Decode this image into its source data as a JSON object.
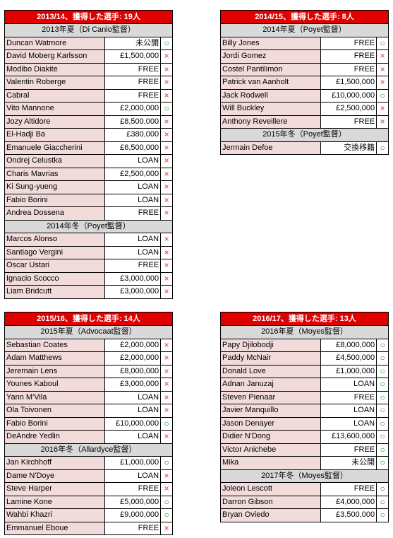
{
  "tables": [
    {
      "title": "2013/14、獲得した選手: 19人",
      "groups": [
        {
          "label": "2013年夏（Di Canio監督）",
          "rows": [
            {
              "name": "Duncan Watmore",
              "fee": "未公開",
              "mark": "ok"
            },
            {
              "name": "David Moberg Karlsson",
              "fee": "£1,500,000",
              "mark": "ng"
            },
            {
              "name": "Modibo Diakite",
              "fee": "FREE",
              "mark": "ng"
            },
            {
              "name": "Valentin Roberge",
              "fee": "FREE",
              "mark": "ng"
            },
            {
              "name": "Cabral",
              "fee": "FREE",
              "mark": "ng"
            },
            {
              "name": "Vito Mannone",
              "fee": "£2,000,000",
              "mark": "ok"
            },
            {
              "name": "Jozy Altidore",
              "fee": "£8,500,000",
              "mark": "ng"
            },
            {
              "name": "El-Hadji Ba",
              "fee": "£380,000",
              "mark": "ng"
            },
            {
              "name": "Emanuele Giaccherini",
              "fee": "£6,500,000",
              "mark": "ng"
            },
            {
              "name": "Ondrej Celustka",
              "fee": "LOAN",
              "mark": "ng"
            },
            {
              "name": "Charis Mavrias",
              "fee": "£2,500,000",
              "mark": "ng"
            },
            {
              "name": "Ki Sung-yueng",
              "fee": "LOAN",
              "mark": "ng"
            },
            {
              "name": "Fabio Borini",
              "fee": "LOAN",
              "mark": "ng"
            },
            {
              "name": "Andrea Dossena",
              "fee": "FREE",
              "mark": "ng"
            }
          ]
        },
        {
          "label": "2014年冬（Poyet監督）",
          "rows": [
            {
              "name": "Marcos Alonso",
              "fee": "LOAN",
              "mark": "ng"
            },
            {
              "name": "Santiago Vergini",
              "fee": "LOAN",
              "mark": "ng"
            },
            {
              "name": "Oscar Ustari",
              "fee": "FREE",
              "mark": "ng"
            },
            {
              "name": "Ignacio Scocco",
              "fee": "£3,000,000",
              "mark": "ng"
            },
            {
              "name": "Liam Bridcutt",
              "fee": "£3,000,000",
              "mark": "ng"
            }
          ]
        }
      ]
    },
    {
      "title": "2014/15、獲得した選手: 8人",
      "groups": [
        {
          "label": "2014年夏（Poyet監督）",
          "rows": [
            {
              "name": "Billy Jones",
              "fee": "FREE",
              "mark": "ok"
            },
            {
              "name": "Jordi Gomez",
              "fee": "FREE",
              "mark": "ng"
            },
            {
              "name": "Costel Pantilimon",
              "fee": "FREE",
              "mark": "ng"
            },
            {
              "name": "Patrick van Aanholt",
              "fee": "£1,500,000",
              "mark": "ng"
            },
            {
              "name": "Jack Rodwell",
              "fee": "£10,000,000",
              "mark": "ok"
            },
            {
              "name": "Will Buckley",
              "fee": "£2,500,000",
              "mark": "ng"
            },
            {
              "name": "Anthony Reveillere",
              "fee": "FREE",
              "mark": "ng"
            }
          ]
        },
        {
          "label": "2015年冬（Poyet監督）",
          "rows": [
            {
              "name": "Jermain Defoe",
              "fee": "交換移籍",
              "mark": "ok"
            }
          ]
        }
      ]
    },
    {
      "title": "2015/16、獲得した選手: 14人",
      "groups": [
        {
          "label": "2015年夏（Advocaat監督）",
          "rows": [
            {
              "name": "Sebastian Coates",
              "fee": "£2,000,000",
              "mark": "ng"
            },
            {
              "name": "Adam Matthews",
              "fee": "£2,000,000",
              "mark": "ng"
            },
            {
              "name": "Jeremain Lens",
              "fee": "£8,000,000",
              "mark": "ng"
            },
            {
              "name": "Younes Kaboul",
              "fee": "£3,000,000",
              "mark": "ng"
            },
            {
              "name": "Yann M'Vila",
              "fee": "LOAN",
              "mark": "ng"
            },
            {
              "name": "Ola Toivonen",
              "fee": "LOAN",
              "mark": "ng"
            },
            {
              "name": "Fabio Borini",
              "fee": "£10,000,000",
              "mark": "ok"
            },
            {
              "name": "DeAndre Yedlin",
              "fee": "LOAN",
              "mark": "ng"
            }
          ]
        },
        {
          "label": "2016年冬（Allardyce監督）",
          "rows": [
            {
              "name": "Jan Kirchhoff",
              "fee": "£1,000,000",
              "mark": "ok"
            },
            {
              "name": "Dame N'Doye",
              "fee": "LOAN",
              "mark": "ng"
            },
            {
              "name": "Steve Harper",
              "fee": "FREE",
              "mark": "ng"
            },
            {
              "name": "Lamine Kone",
              "fee": "£5,000,000",
              "mark": "ok"
            },
            {
              "name": "Wahbi Khazri",
              "fee": "£9,000,000",
              "mark": "ok"
            },
            {
              "name": "Emmanuel Eboue",
              "fee": "FREE",
              "mark": "ng"
            }
          ]
        }
      ]
    },
    {
      "title": "2016/17、獲得した選手: 13人",
      "groups": [
        {
          "label": "2016年夏（Moyes監督）",
          "rows": [
            {
              "name": "Papy Djilobodji",
              "fee": "£8,000,000",
              "mark": "ok"
            },
            {
              "name": "Paddy McNair",
              "fee": "£4,500,000",
              "mark": "ok"
            },
            {
              "name": "Donald Love",
              "fee": "£1,000,000",
              "mark": "ok"
            },
            {
              "name": "Adnan Januzaj",
              "fee": "LOAN",
              "mark": "ok"
            },
            {
              "name": "Steven Pienaar",
              "fee": "FREE",
              "mark": "ok"
            },
            {
              "name": "Javier Manquillo",
              "fee": "LOAN",
              "mark": "ok"
            },
            {
              "name": "Jason Denayer",
              "fee": "LOAN",
              "mark": "ok"
            },
            {
              "name": "Didier N'Dong",
              "fee": "£13,600,000",
              "mark": "ok"
            },
            {
              "name": "Victor Anichebe",
              "fee": "FREE",
              "mark": "ok"
            },
            {
              "name": "Mika",
              "fee": "未公開",
              "mark": "ok"
            }
          ]
        },
        {
          "label": "2017年冬（Moyes監督）",
          "rows": [
            {
              "name": "Joleon Lescott",
              "fee": "FREE",
              "mark": "ok"
            },
            {
              "name": "Darron Gibson",
              "fee": "£4,000,000",
              "mark": "ok"
            },
            {
              "name": "Bryan Oviedo",
              "fee": "£3,500,000",
              "mark": "ok"
            }
          ]
        }
      ]
    }
  ],
  "marks": {
    "ok": "○",
    "ng": "×"
  },
  "colors": {
    "title_bg": "#e00000",
    "section_bg": "#d9d9d9",
    "name_bg": "#f2dcdb",
    "ok": "#00a000",
    "ng": "#e03030"
  }
}
